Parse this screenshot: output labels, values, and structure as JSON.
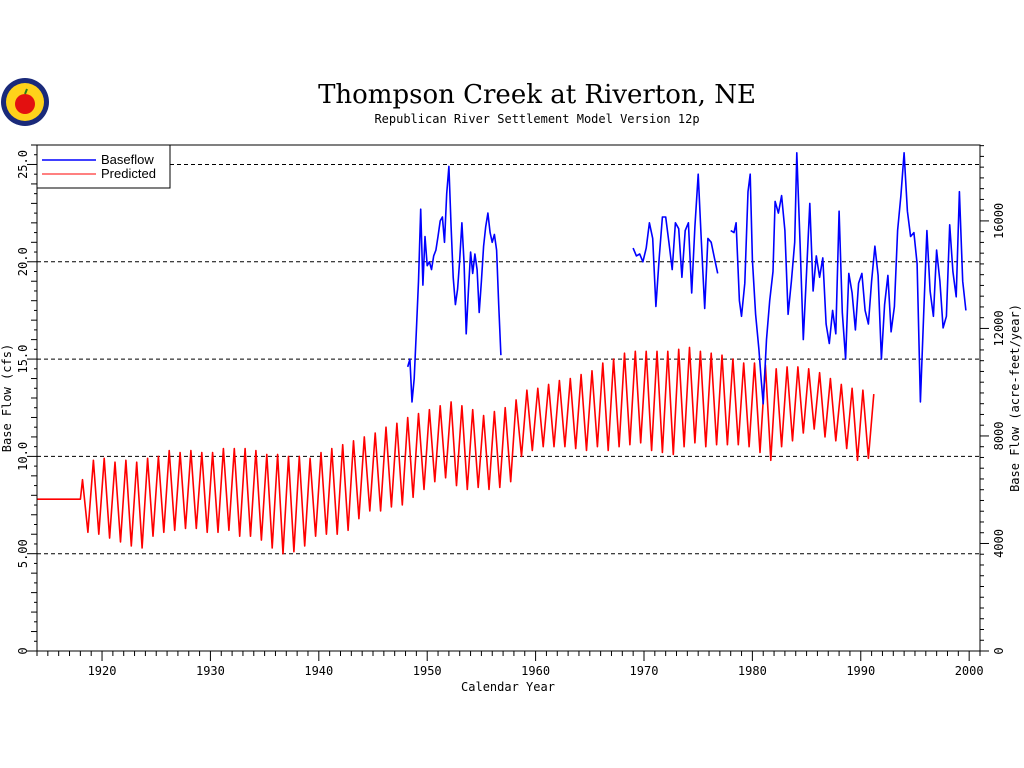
{
  "logo": {
    "icon": "apple-seal-icon"
  },
  "chart_data": {
    "type": "line",
    "title": "Thompson Creek at Riverton, NE",
    "subtitle": "Republican River Settlement Model Version 12p",
    "xlabel": "Calendar Year",
    "ylabel": "Base Flow (cfs)",
    "ylabel_right": "Base Flow (acre-feet/year)",
    "xlim": [
      1914,
      2001
    ],
    "ylim": [
      0,
      26
    ],
    "x_ticks": [
      1920,
      1930,
      1940,
      1950,
      1960,
      1970,
      1980,
      1990,
      2000
    ],
    "x_tick_labels": [
      "1920",
      "1930",
      "1940",
      "1950",
      "1960",
      "1970",
      "1980",
      "1990",
      "2000"
    ],
    "y_ticks": [
      0,
      5,
      10,
      15,
      20,
      25
    ],
    "y_tick_labels": [
      "0",
      "5.00",
      "10.0",
      "15.0",
      "20.0",
      "25.0"
    ],
    "y_right_ticks": [
      0,
      4000,
      8000,
      12000,
      16000
    ],
    "y_right_tick_labels": [
      "0",
      "4000",
      "8000",
      "12000",
      "16000"
    ],
    "grid": "dashed horizontal at 5, 10, 15, 20, 25",
    "legend": {
      "placement": "top-left",
      "entries": [
        "Baseflow",
        "Predicted"
      ]
    },
    "series": [
      {
        "name": "Baseflow",
        "color": "#0000ff",
        "segments": [
          [
            [
              1948.2,
              14.6
            ],
            [
              1948.4,
              15.0
            ],
            [
              1948.6,
              12.8
            ],
            [
              1948.8,
              14.0
            ],
            [
              1949.0,
              16.5
            ],
            [
              1949.2,
              19.0
            ],
            [
              1949.4,
              22.7
            ],
            [
              1949.6,
              18.8
            ],
            [
              1949.8,
              21.3
            ],
            [
              1950.0,
              19.8
            ],
            [
              1950.2,
              20.0
            ],
            [
              1950.4,
              19.6
            ],
            [
              1950.6,
              20.3
            ],
            [
              1950.8,
              20.6
            ],
            [
              1951.0,
              21.3
            ],
            [
              1951.2,
              22.1
            ],
            [
              1951.4,
              22.3
            ],
            [
              1951.6,
              21.0
            ],
            [
              1951.8,
              23.5
            ],
            [
              1952.0,
              24.9
            ],
            [
              1952.2,
              21.8
            ],
            [
              1952.4,
              19.2
            ],
            [
              1952.6,
              17.8
            ],
            [
              1952.8,
              18.6
            ],
            [
              1953.0,
              20.1
            ],
            [
              1953.2,
              22.0
            ],
            [
              1953.4,
              19.9
            ],
            [
              1953.6,
              16.3
            ],
            [
              1953.8,
              18.5
            ],
            [
              1954.0,
              20.5
            ],
            [
              1954.2,
              19.4
            ],
            [
              1954.4,
              20.4
            ],
            [
              1954.6,
              19.6
            ],
            [
              1954.8,
              17.4
            ],
            [
              1955.0,
              19.0
            ],
            [
              1955.2,
              20.8
            ],
            [
              1955.4,
              21.8
            ],
            [
              1955.6,
              22.5
            ],
            [
              1955.8,
              21.5
            ],
            [
              1956.0,
              21.0
            ],
            [
              1956.2,
              21.4
            ],
            [
              1956.4,
              20.6
            ],
            [
              1956.6,
              17.8
            ],
            [
              1956.8,
              15.2
            ]
          ],
          [
            [
              1969.0,
              20.7
            ],
            [
              1969.3,
              20.3
            ],
            [
              1969.6,
              20.4
            ],
            [
              1969.9,
              20.0
            ],
            [
              1970.2,
              20.7
            ],
            [
              1970.5,
              22.0
            ],
            [
              1970.8,
              21.2
            ],
            [
              1971.1,
              17.7
            ],
            [
              1971.4,
              20.2
            ],
            [
              1971.7,
              22.3
            ],
            [
              1972.0,
              22.3
            ],
            [
              1972.3,
              21.0
            ],
            [
              1972.6,
              19.6
            ],
            [
              1972.9,
              22.0
            ],
            [
              1973.2,
              21.7
            ],
            [
              1973.5,
              19.2
            ],
            [
              1973.8,
              21.6
            ],
            [
              1974.1,
              22.0
            ],
            [
              1974.4,
              18.4
            ],
            [
              1974.7,
              21.8
            ],
            [
              1975.0,
              24.5
            ],
            [
              1975.3,
              21.0
            ],
            [
              1975.6,
              17.6
            ],
            [
              1975.9,
              21.2
            ],
            [
              1976.2,
              21.0
            ],
            [
              1976.5,
              20.2
            ],
            [
              1976.8,
              19.4
            ]
          ],
          [
            [
              1978.0,
              21.6
            ],
            [
              1978.3,
              21.5
            ],
            [
              1978.5,
              22.0
            ],
            [
              1978.8,
              18.0
            ],
            [
              1979.0,
              17.2
            ],
            [
              1979.3,
              18.9
            ],
            [
              1979.6,
              23.6
            ],
            [
              1979.8,
              24.5
            ],
            [
              1980.0,
              20.1
            ],
            [
              1980.3,
              17.3
            ],
            [
              1980.6,
              15.5
            ],
            [
              1980.8,
              14.0
            ],
            [
              1981.0,
              12.7
            ],
            [
              1981.3,
              16.0
            ],
            [
              1981.6,
              18.0
            ],
            [
              1981.9,
              19.5
            ],
            [
              1982.1,
              23.1
            ],
            [
              1982.4,
              22.5
            ],
            [
              1982.7,
              23.4
            ],
            [
              1983.0,
              21.6
            ],
            [
              1983.3,
              17.3
            ],
            [
              1983.6,
              19.0
            ],
            [
              1983.9,
              21.0
            ],
            [
              1984.1,
              25.6
            ],
            [
              1984.4,
              20.9
            ],
            [
              1984.7,
              16.0
            ],
            [
              1985.0,
              19.5
            ],
            [
              1985.3,
              23.0
            ],
            [
              1985.6,
              18.5
            ],
            [
              1985.9,
              20.3
            ],
            [
              1986.2,
              19.2
            ],
            [
              1986.5,
              20.2
            ],
            [
              1986.8,
              16.8
            ],
            [
              1987.1,
              15.8
            ],
            [
              1987.4,
              17.5
            ],
            [
              1987.7,
              16.3
            ],
            [
              1988.0,
              22.6
            ],
            [
              1988.3,
              17.4
            ],
            [
              1988.6,
              15.0
            ],
            [
              1988.9,
              19.4
            ],
            [
              1989.2,
              18.4
            ],
            [
              1989.5,
              16.5
            ],
            [
              1989.8,
              18.9
            ],
            [
              1990.1,
              19.4
            ],
            [
              1990.4,
              17.5
            ],
            [
              1990.7,
              16.8
            ],
            [
              1991.0,
              19.0
            ],
            [
              1991.3,
              20.8
            ],
            [
              1991.6,
              19.3
            ],
            [
              1991.9,
              15.0
            ],
            [
              1992.2,
              17.8
            ],
            [
              1992.5,
              19.3
            ],
            [
              1992.8,
              16.4
            ],
            [
              1993.1,
              17.7
            ],
            [
              1993.4,
              21.6
            ],
            [
              1993.7,
              23.4
            ],
            [
              1994.0,
              25.6
            ],
            [
              1994.3,
              22.6
            ],
            [
              1994.6,
              21.3
            ],
            [
              1994.9,
              21.5
            ],
            [
              1995.2,
              19.9
            ],
            [
              1995.5,
              12.8
            ],
            [
              1995.8,
              17.2
            ],
            [
              1996.1,
              21.6
            ],
            [
              1996.4,
              18.5
            ],
            [
              1996.7,
              17.2
            ],
            [
              1997.0,
              20.6
            ],
            [
              1997.3,
              19.0
            ],
            [
              1997.6,
              16.6
            ],
            [
              1997.9,
              17.2
            ],
            [
              1998.2,
              21.9
            ],
            [
              1998.5,
              19.5
            ],
            [
              1998.8,
              18.2
            ],
            [
              1999.1,
              23.6
            ],
            [
              1999.4,
              19.0
            ],
            [
              1999.7,
              17.5
            ]
          ]
        ]
      },
      {
        "name": "Predicted",
        "color": "#ff0000",
        "x_start": 1918.2,
        "x_step": 0.5,
        "values": [
          8.8,
          6.1,
          9.8,
          6.0,
          9.9,
          5.8,
          9.7,
          5.6,
          9.8,
          5.4,
          9.7,
          5.3,
          9.9,
          5.9,
          10.0,
          6.1,
          10.3,
          6.2,
          10.2,
          6.3,
          10.3,
          6.3,
          10.2,
          6.1,
          10.2,
          6.1,
          10.4,
          6.2,
          10.4,
          5.9,
          10.4,
          5.9,
          10.3,
          5.7,
          10.1,
          5.3,
          10.1,
          5.0,
          10.0,
          5.1,
          10.0,
          5.4,
          9.9,
          5.9,
          10.2,
          6.0,
          10.4,
          6.0,
          10.6,
          6.2,
          10.8,
          6.8,
          11.0,
          7.2,
          11.2,
          7.2,
          11.5,
          7.4,
          11.7,
          7.5,
          12.0,
          7.9,
          12.2,
          8.3,
          12.4,
          8.7,
          12.6,
          8.9,
          12.8,
          8.5,
          12.6,
          8.3,
          12.4,
          8.4,
          12.1,
          8.3,
          12.3,
          8.4,
          12.5,
          8.7,
          12.9,
          10.0,
          13.4,
          10.3,
          13.5,
          10.5,
          13.7,
          10.5,
          13.9,
          10.5,
          14.0,
          10.4,
          14.2,
          10.3,
          14.4,
          10.5,
          14.8,
          10.3,
          15.0,
          10.5,
          15.3,
          10.6,
          15.4,
          10.7,
          15.4,
          10.3,
          15.4,
          10.2,
          15.4,
          10.1,
          15.5,
          10.5,
          15.6,
          10.7,
          15.4,
          10.5,
          15.3,
          10.6,
          15.2,
          10.6,
          15.0,
          10.6,
          14.8,
          10.5,
          14.8,
          10.2,
          14.7,
          9.8,
          14.5,
          10.5,
          14.6,
          10.8,
          14.6,
          11.2,
          14.5,
          11.4,
          14.3,
          11.0,
          14.0,
          10.8,
          13.7,
          10.4,
          13.5,
          9.8,
          13.4,
          9.9,
          13.2
        ]
      }
    ]
  }
}
